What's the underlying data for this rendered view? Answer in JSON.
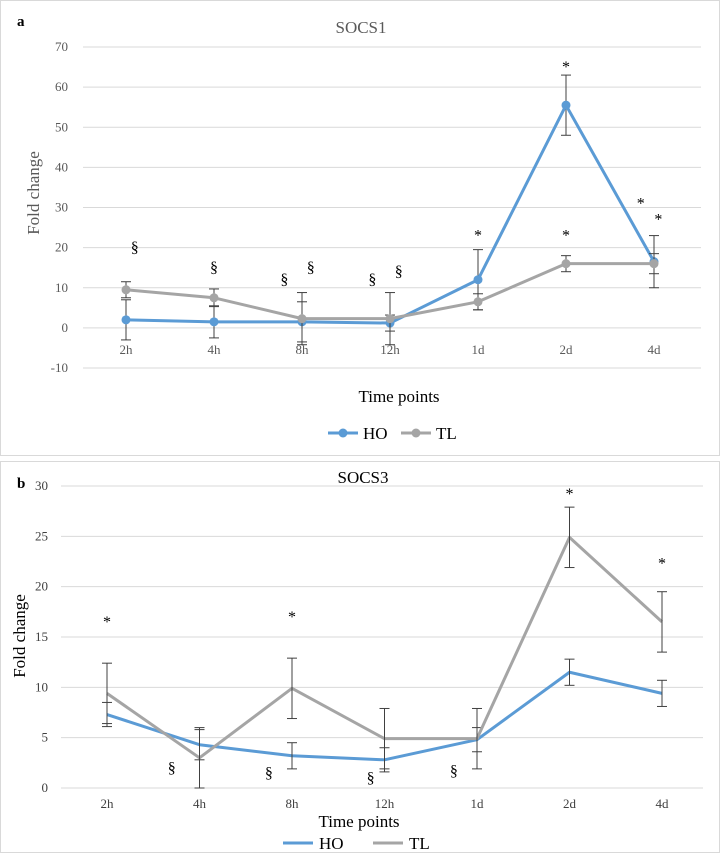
{
  "colors": {
    "HO": "#5b9bd5",
    "TL": "#a5a5a5",
    "grid": "#d9d9d9",
    "errorbar": "#404040"
  },
  "chart_data": [
    {
      "panel_letter": "a",
      "type": "line",
      "title": "SOCS1",
      "xlabel": "Time points",
      "ylabel": "Fold change",
      "ylim": [
        -10,
        70
      ],
      "yticks": [
        -10,
        0,
        10,
        20,
        30,
        40,
        50,
        60,
        70
      ],
      "categories": [
        "2h",
        "4h",
        "8h",
        "12h",
        "1d",
        "2d",
        "4d"
      ],
      "markers": true,
      "series": [
        {
          "name": "HO",
          "values": [
            2,
            1.5,
            1.5,
            1.2,
            12,
            55.5,
            16.5
          ],
          "errors": [
            5,
            4,
            5,
            2,
            7.5,
            7.5,
            6.5
          ]
        },
        {
          "name": "TL",
          "values": [
            9.5,
            7.5,
            2.3,
            2.3,
            6.5,
            16,
            16
          ],
          "errors": [
            2,
            2.2,
            6.5,
            6.5,
            2,
            2,
            2.5
          ]
        }
      ],
      "annotations": [
        {
          "text": "§",
          "x_index": 0,
          "offset": 0.1,
          "y": 20
        },
        {
          "text": "§",
          "x_index": 1,
          "offset": 0,
          "y": 15
        },
        {
          "text": "§",
          "x_index": 2,
          "offset": -0.2,
          "y": 12
        },
        {
          "text": "§",
          "x_index": 2,
          "offset": 0.1,
          "y": 15
        },
        {
          "text": "§",
          "x_index": 3,
          "offset": -0.2,
          "y": 12
        },
        {
          "text": "§",
          "x_index": 3,
          "offset": 0.1,
          "y": 14
        },
        {
          "text": "*",
          "x_index": 4,
          "offset": 0,
          "y": 23
        },
        {
          "text": "*",
          "x_index": 5,
          "offset": 0,
          "y": 23
        },
        {
          "text": "*",
          "x_index": 5,
          "offset": 0,
          "y": 65
        },
        {
          "text": "*",
          "x_index": 6,
          "offset": -0.15,
          "y": 31
        },
        {
          "text": "*",
          "x_index": 6,
          "offset": 0.05,
          "y": 27
        }
      ]
    },
    {
      "panel_letter": "b",
      "type": "line",
      "title": "SOCS3",
      "xlabel": "Time points",
      "ylabel": "Fold change",
      "ylim": [
        0,
        30
      ],
      "yticks": [
        0,
        5,
        10,
        15,
        20,
        25,
        30
      ],
      "categories": [
        "2h",
        "4h",
        "8h",
        "12h",
        "1d",
        "2d",
        "4d"
      ],
      "markers": false,
      "series": [
        {
          "name": "HO",
          "values": [
            7.3,
            4.3,
            3.2,
            2.8,
            4.8,
            11.5,
            9.4
          ],
          "errors": [
            1.2,
            1.5,
            1.3,
            1.2,
            1.2,
            1.3,
            1.3
          ]
        },
        {
          "name": "TL",
          "values": [
            9.4,
            3,
            9.9,
            4.9,
            4.9,
            24.9,
            16.5
          ],
          "errors": [
            3,
            3,
            3,
            3,
            3,
            3,
            3
          ]
        }
      ],
      "annotations": [
        {
          "text": "*",
          "x_index": 0,
          "offset": 0,
          "y": 16.5
        },
        {
          "text": "§",
          "x_index": 1,
          "offset": -0.3,
          "y": 2
        },
        {
          "text": "*",
          "x_index": 2,
          "offset": 0,
          "y": 17
        },
        {
          "text": "§",
          "x_index": 2,
          "offset": -0.25,
          "y": 1.5
        },
        {
          "text": "§",
          "x_index": 3,
          "offset": -0.15,
          "y": 1
        },
        {
          "text": "§",
          "x_index": 4,
          "offset": -0.25,
          "y": 1.7
        },
        {
          "text": "*",
          "x_index": 5,
          "offset": 0,
          "y": 29.2
        },
        {
          "text": "*",
          "x_index": 6,
          "offset": 0,
          "y": 22.3
        }
      ]
    }
  ]
}
